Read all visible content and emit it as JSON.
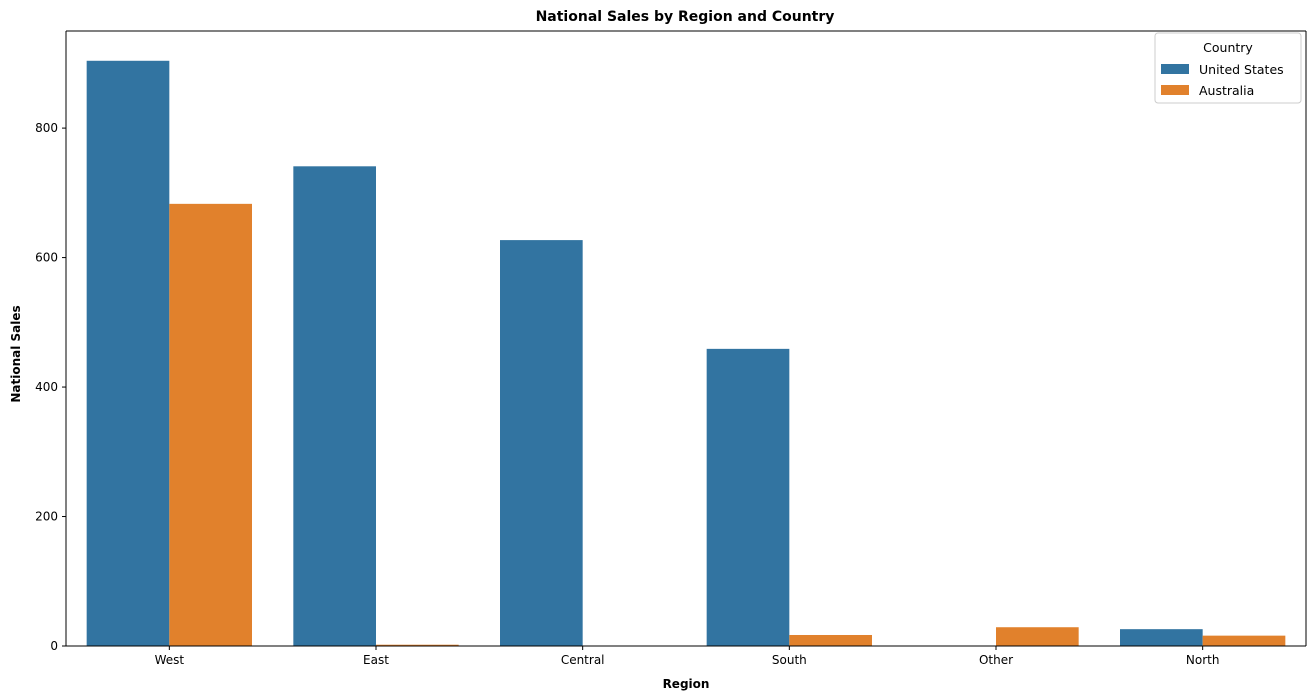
{
  "chart_data": {
    "type": "bar",
    "title": "National Sales by Region and Country",
    "xlabel": "Region",
    "ylabel": "National Sales",
    "categories": [
      "West",
      "East",
      "Central",
      "South",
      "Other",
      "North"
    ],
    "series": [
      {
        "name": "United States",
        "color": "#3274a1",
        "values": [
          904,
          741,
          627,
          459,
          0,
          26
        ]
      },
      {
        "name": "Australia",
        "color": "#e1812c",
        "values": [
          683,
          2,
          0,
          17,
          29,
          16
        ]
      }
    ],
    "ylim": [
      0,
      950
    ],
    "yticks": [
      0,
      200,
      400,
      600,
      800
    ],
    "grid": false,
    "legend": {
      "title": "Country",
      "placement": "top-right"
    }
  }
}
